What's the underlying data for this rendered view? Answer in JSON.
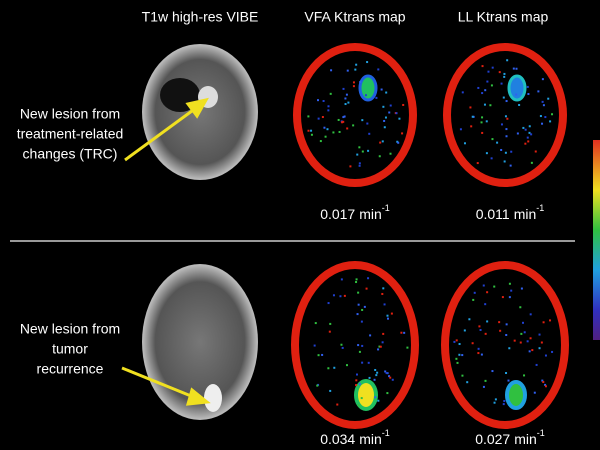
{
  "columns": [
    "T1w high-res VIBE",
    "VFA Ktrans map",
    "LL Ktrans map"
  ],
  "rows": [
    {
      "label_lines": [
        "New lesion from",
        "treatment-related",
        "changes (TRC)"
      ],
      "values": [
        {
          "number": "0.017",
          "unit": "min",
          "exponent": "-1"
        },
        {
          "number": "0.011",
          "unit": "min",
          "exponent": "-1"
        }
      ]
    },
    {
      "label_lines": [
        "New lesion from",
        "tumor",
        "recurrence"
      ],
      "values": [
        {
          "number": "0.034",
          "unit": "min",
          "exponent": "-1"
        },
        {
          "number": "0.027",
          "unit": "min",
          "exponent": "-1"
        }
      ]
    }
  ]
}
